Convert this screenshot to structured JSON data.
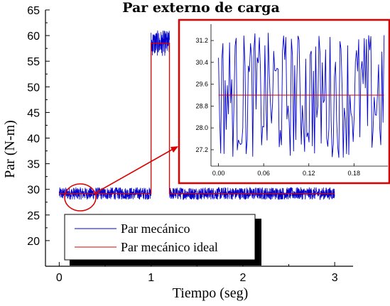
{
  "chart_data": {
    "type": "line",
    "title": "Par externo de carga",
    "xlabel": "Tiempo (seg)",
    "ylabel": "Par (N-m)",
    "xlim": [
      -0.15,
      3.2
    ],
    "ylim": [
      15,
      65
    ],
    "xticks": [
      "0",
      "1",
      "2",
      "3"
    ],
    "yticks": [
      "20",
      "25",
      "30",
      "35",
      "40",
      "45",
      "50",
      "55",
      "60",
      "65"
    ],
    "series": [
      {
        "name": "Par mecánico",
        "color": "#0000cc",
        "segments": [
          {
            "x_start": 0.0,
            "x_end": 1.0,
            "mean": 29.2,
            "amplitude": 1.2
          },
          {
            "x_start": 1.0,
            "x_end": 1.2,
            "mean": 58.5,
            "amplitude": 2.5
          },
          {
            "x_start": 1.2,
            "x_end": 3.0,
            "mean": 29.2,
            "amplitude": 1.2
          }
        ]
      },
      {
        "name": "Par mecánico ideal",
        "color": "#dd0000",
        "x": [
          0.0,
          1.0,
          1.0,
          1.2,
          1.2,
          3.0
        ],
        "y": [
          29.2,
          29.2,
          58.5,
          58.5,
          29.2,
          29.2
        ]
      }
    ],
    "legend": {
      "position": "bottom-left",
      "entries": [
        "Par mecánico",
        "Par mecánico ideal"
      ]
    },
    "grid": false,
    "inset": {
      "description_source": "zoom of the first 0.22 s",
      "xlim": [
        -0.01,
        0.225
      ],
      "ylim": [
        26.6,
        31.8
      ],
      "xticks": [
        "0.00",
        "0.06",
        "0.12",
        "0.18"
      ],
      "yticks": [
        "27.2",
        "28.0",
        "28.8",
        "29.6",
        "30.4",
        "31.2"
      ],
      "ideal_value": 29.2,
      "border_color": "#dd0000"
    }
  }
}
